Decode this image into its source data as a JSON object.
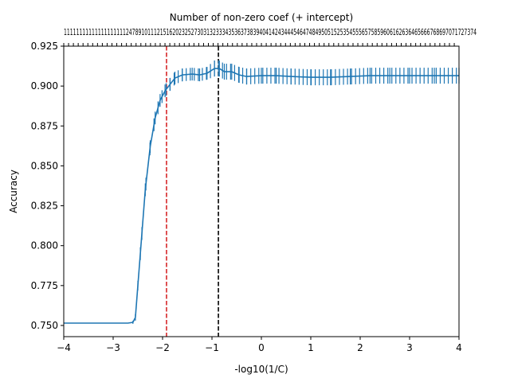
{
  "chart_data": {
    "type": "line",
    "title": "Number of non-zero coef (+ intercept)",
    "xlabel": "-log10(1/C)",
    "ylabel": "Accuracy",
    "xlim": [
      -4,
      4
    ],
    "ylim": [
      0.743,
      0.925
    ],
    "xticks": [
      -4,
      -3,
      -2,
      -1,
      0,
      1,
      2,
      3,
      4
    ],
    "xtick_labels": [
      "−4",
      "−3",
      "−2",
      "−1",
      "0",
      "1",
      "2",
      "3",
      "4"
    ],
    "yticks": [
      0.75,
      0.775,
      0.8,
      0.825,
      0.85,
      0.875,
      0.9,
      0.925
    ],
    "ytick_labels": [
      "0.750",
      "0.775",
      "0.800",
      "0.825",
      "0.850",
      "0.875",
      "0.900",
      "0.925"
    ],
    "grid": false,
    "legend": "none",
    "top_axis": {
      "label": "Number of non-zero coef (+ intercept)",
      "tick_labels_text": "1111111111111111111124789101112151620232527303132333435363738394041424344454647484950515253545556575859606162636465666768697071727374"
    },
    "reference_lines": [
      {
        "x": -1.92,
        "color": "#d62728",
        "style": "dashed"
      },
      {
        "x": -0.87,
        "color": "#000000",
        "style": "dashed"
      }
    ],
    "series": [
      {
        "color": "#1f77b4",
        "points": [
          {
            "x": -4.0,
            "y": 0.7515,
            "err": 0.0
          },
          {
            "x": -3.0,
            "y": 0.7515,
            "err": 0.0
          },
          {
            "x": -2.7,
            "y": 0.7515,
            "err": 0.0
          },
          {
            "x": -2.6,
            "y": 0.752,
            "err": 0.001
          },
          {
            "x": -2.55,
            "y": 0.755,
            "err": 0.002
          },
          {
            "x": -2.45,
            "y": 0.795,
            "err": 0.004
          },
          {
            "x": -2.35,
            "y": 0.835,
            "err": 0.004
          },
          {
            "x": -2.25,
            "y": 0.862,
            "err": 0.004
          },
          {
            "x": -2.15,
            "y": 0.88,
            "err": 0.004
          },
          {
            "x": -2.05,
            "y": 0.891,
            "err": 0.004
          },
          {
            "x": -1.95,
            "y": 0.897,
            "err": 0.004
          },
          {
            "x": -1.85,
            "y": 0.901,
            "err": 0.004
          },
          {
            "x": -1.75,
            "y": 0.905,
            "err": 0.004
          },
          {
            "x": -1.6,
            "y": 0.907,
            "err": 0.004
          },
          {
            "x": -1.4,
            "y": 0.9075,
            "err": 0.004
          },
          {
            "x": -1.25,
            "y": 0.907,
            "err": 0.004
          },
          {
            "x": -1.1,
            "y": 0.908,
            "err": 0.004
          },
          {
            "x": -0.95,
            "y": 0.911,
            "err": 0.005
          },
          {
            "x": -0.85,
            "y": 0.911,
            "err": 0.005
          },
          {
            "x": -0.75,
            "y": 0.909,
            "err": 0.005
          },
          {
            "x": -0.6,
            "y": 0.909,
            "err": 0.005
          },
          {
            "x": -0.45,
            "y": 0.907,
            "err": 0.005
          },
          {
            "x": -0.3,
            "y": 0.906,
            "err": 0.005
          },
          {
            "x": 0.0,
            "y": 0.9065,
            "err": 0.005
          },
          {
            "x": 0.3,
            "y": 0.9065,
            "err": 0.005
          },
          {
            "x": 0.6,
            "y": 0.906,
            "err": 0.005
          },
          {
            "x": 1.0,
            "y": 0.9055,
            "err": 0.005
          },
          {
            "x": 1.4,
            "y": 0.9055,
            "err": 0.005
          },
          {
            "x": 1.8,
            "y": 0.906,
            "err": 0.005
          },
          {
            "x": 2.2,
            "y": 0.9065,
            "err": 0.005
          },
          {
            "x": 2.6,
            "y": 0.9065,
            "err": 0.005
          },
          {
            "x": 3.0,
            "y": 0.9065,
            "err": 0.005
          },
          {
            "x": 3.5,
            "y": 0.9065,
            "err": 0.005
          },
          {
            "x": 4.0,
            "y": 0.9065,
            "err": 0.005
          }
        ]
      }
    ]
  }
}
